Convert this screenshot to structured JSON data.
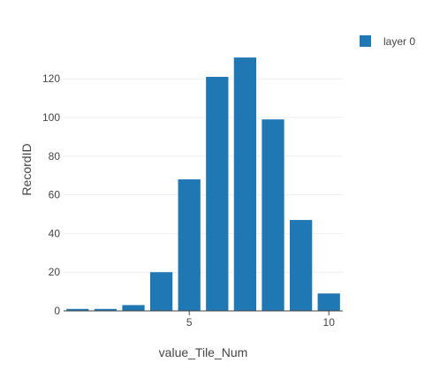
{
  "chart_data": {
    "type": "bar",
    "x": [
      1,
      2,
      3,
      4,
      5,
      6,
      7,
      8,
      9,
      10
    ],
    "series": [
      {
        "name": "layer 0",
        "values": [
          1,
          1,
          3,
          20,
          68,
          121,
          131,
          99,
          47,
          9
        ]
      }
    ],
    "xlabel": "value_Tile_Num",
    "ylabel": "RecordID",
    "xlim": [
      0.5,
      10.5
    ],
    "ylim": [
      0,
      137.9
    ],
    "xticks": [
      5,
      10
    ],
    "yticks": [
      0,
      20,
      40,
      60,
      80,
      100,
      120
    ],
    "grid": true,
    "legend_position": "top-right",
    "colors": {
      "bar": "#1f77b4",
      "grid": "#eeeeee",
      "axis_line": "#444444",
      "text": "#444444"
    }
  }
}
